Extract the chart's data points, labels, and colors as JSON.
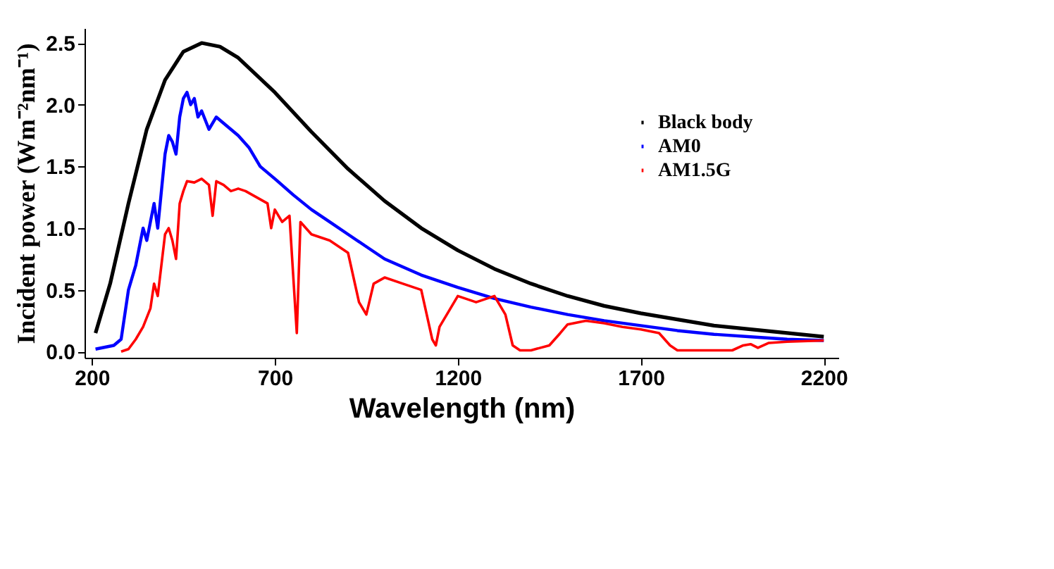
{
  "chart_data": {
    "type": "line",
    "xlabel": "Wavelength (nm)",
    "ylabel": "Incident power (Wm⁻²nm⁻¹)",
    "xlim": [
      180,
      2240
    ],
    "ylim": [
      -0.05,
      2.62
    ],
    "xticks": [
      200,
      700,
      1200,
      1700,
      2200
    ],
    "yticks": [
      {
        "value": 0,
        "label": "0.0"
      },
      0.5,
      {
        "value": 1,
        "label": "1.0"
      },
      1.5,
      {
        "value": 2,
        "label": "2.0"
      },
      2.5
    ],
    "grid": false,
    "legend": "top right",
    "marker": "none",
    "line_style": "solid",
    "series": [
      {
        "name": "Black body",
        "color": "#000000",
        "x": [
          210,
          250,
          300,
          350,
          400,
          450,
          500,
          550,
          600,
          700,
          800,
          900,
          1000,
          1100,
          1200,
          1300,
          1400,
          1500,
          1600,
          1700,
          1800,
          1900,
          2000,
          2100,
          2200
        ],
        "values": [
          0.15,
          0.55,
          1.2,
          1.8,
          2.2,
          2.43,
          2.5,
          2.47,
          2.38,
          2.1,
          1.78,
          1.48,
          1.22,
          1.0,
          0.82,
          0.67,
          0.55,
          0.45,
          0.37,
          0.31,
          0.26,
          0.21,
          0.18,
          0.15,
          0.12
        ]
      },
      {
        "name": "AM0",
        "color": "#0000ff",
        "x": [
          210,
          260,
          280,
          300,
          320,
          340,
          350,
          360,
          370,
          380,
          390,
          400,
          410,
          420,
          430,
          440,
          450,
          460,
          470,
          480,
          490,
          500,
          520,
          540,
          560,
          580,
          600,
          630,
          660,
          680,
          700,
          750,
          800,
          850,
          900,
          950,
          1000,
          1100,
          1200,
          1300,
          1400,
          1500,
          1600,
          1700,
          1800,
          1900,
          2000,
          2100,
          2200
        ],
        "values": [
          0.02,
          0.05,
          0.1,
          0.5,
          0.7,
          1.0,
          0.9,
          1.05,
          1.2,
          1.0,
          1.3,
          1.6,
          1.75,
          1.7,
          1.6,
          1.9,
          2.05,
          2.1,
          2.0,
          2.05,
          1.9,
          1.95,
          1.8,
          1.9,
          1.85,
          1.8,
          1.75,
          1.65,
          1.5,
          1.45,
          1.4,
          1.27,
          1.15,
          1.05,
          0.95,
          0.85,
          0.75,
          0.62,
          0.52,
          0.43,
          0.36,
          0.3,
          0.25,
          0.21,
          0.17,
          0.14,
          0.12,
          0.1,
          0.09
        ]
      },
      {
        "name": "AM1.5G",
        "color": "#ff0000",
        "x": [
          280,
          300,
          320,
          340,
          360,
          370,
          380,
          390,
          400,
          410,
          420,
          430,
          440,
          450,
          460,
          480,
          500,
          520,
          530,
          540,
          560,
          580,
          600,
          620,
          650,
          680,
          690,
          700,
          720,
          740,
          760,
          770,
          800,
          850,
          900,
          930,
          950,
          970,
          1000,
          1050,
          1100,
          1130,
          1140,
          1150,
          1200,
          1250,
          1300,
          1330,
          1350,
          1370,
          1400,
          1450,
          1480,
          1500,
          1550,
          1600,
          1650,
          1700,
          1750,
          1780,
          1800,
          1900,
          1950,
          1980,
          2000,
          2020,
          2050,
          2100,
          2200
        ],
        "values": [
          0.0,
          0.02,
          0.1,
          0.2,
          0.35,
          0.55,
          0.45,
          0.7,
          0.95,
          1.0,
          0.9,
          0.75,
          1.2,
          1.3,
          1.38,
          1.37,
          1.4,
          1.35,
          1.1,
          1.38,
          1.35,
          1.3,
          1.32,
          1.3,
          1.25,
          1.2,
          1.0,
          1.15,
          1.05,
          1.1,
          0.15,
          1.05,
          0.95,
          0.9,
          0.8,
          0.4,
          0.3,
          0.55,
          0.6,
          0.55,
          0.5,
          0.1,
          0.05,
          0.2,
          0.45,
          0.4,
          0.45,
          0.3,
          0.05,
          0.01,
          0.01,
          0.05,
          0.15,
          0.22,
          0.25,
          0.23,
          0.2,
          0.18,
          0.15,
          0.05,
          0.01,
          0.01,
          0.01,
          0.05,
          0.06,
          0.03,
          0.07,
          0.08,
          0.09
        ]
      }
    ]
  }
}
